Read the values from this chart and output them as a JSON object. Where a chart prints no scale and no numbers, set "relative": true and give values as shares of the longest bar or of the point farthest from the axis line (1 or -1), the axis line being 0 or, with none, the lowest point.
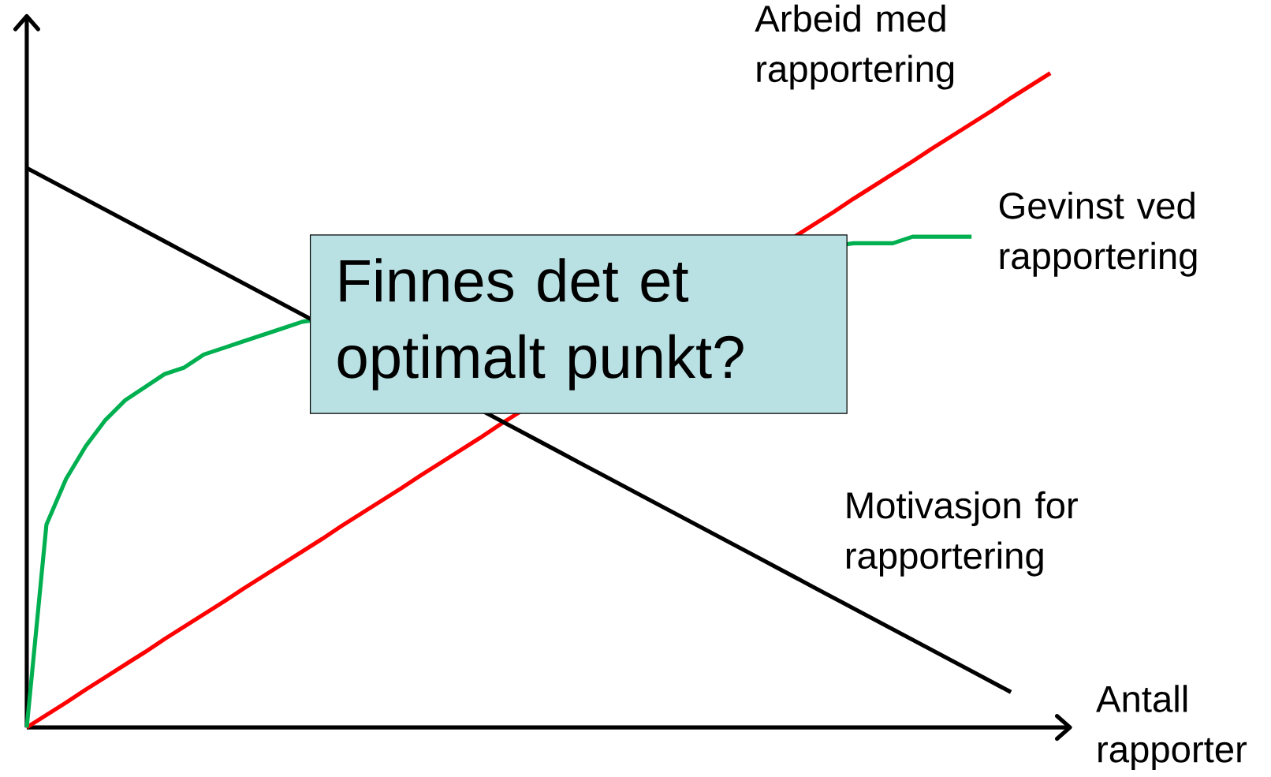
{
  "chart_data": {
    "type": "line",
    "relative": true,
    "xlabel": "Antall rapporter",
    "legend": false,
    "marker": "none",
    "line_style": "solid",
    "categories": [
      null,
      null,
      null,
      null,
      null,
      null,
      null,
      null,
      null,
      null,
      null,
      null,
      null,
      null,
      null,
      null,
      null,
      null,
      null,
      null,
      null,
      null,
      null,
      null,
      null,
      null,
      null,
      null,
      null,
      null,
      null,
      null,
      null,
      null,
      null,
      null,
      null,
      null,
      null,
      null,
      null,
      null,
      null,
      null,
      null,
      null,
      null,
      null,
      null,
      null,
      null,
      null,
      null
    ],
    "series": [
      {
        "name": "Arbeid med rapportering",
        "color": "#ff0000",
        "values": [
          0,
          0.019,
          0.038,
          0.058,
          0.077,
          0.096,
          0.115,
          0.135,
          0.154,
          0.173,
          0.192,
          0.212,
          0.231,
          0.25,
          0.269,
          0.288,
          0.308,
          0.327,
          0.346,
          0.365,
          0.385,
          0.404,
          0.423,
          0.442,
          0.462,
          null,
          null,
          null,
          null,
          null,
          null,
          null,
          null,
          null,
          null,
          null,
          null,
          null,
          null,
          null,
          0.769,
          0.788,
          0.808,
          0.827,
          0.846,
          0.865,
          0.885,
          0.904,
          0.923,
          0.942,
          0.962,
          0.981,
          1
        ]
      },
      {
        "name": "Gevinst ved rapportering",
        "color": "#00b050",
        "values": [
          0,
          0.31,
          0.38,
          0.43,
          0.47,
          0.5,
          0.52,
          0.54,
          0.55,
          0.57,
          0.58,
          0.59,
          0.6,
          0.61,
          0.62,
          null,
          null,
          null,
          null,
          null,
          null,
          null,
          null,
          null,
          null,
          null,
          null,
          null,
          null,
          null,
          null,
          null,
          null,
          null,
          null,
          null,
          null,
          null,
          null,
          null,
          null,
          null,
          0.74,
          0.74,
          0.74,
          0.75,
          0.75,
          0.75,
          0.75,
          null,
          null,
          null,
          null
        ]
      },
      {
        "name": "Motivasjon for rapportering",
        "color": "#000000",
        "values": [
          0.855,
          0.839,
          0.823,
          0.807,
          0.791,
          0.775,
          0.759,
          0.743,
          0.727,
          0.711,
          0.695,
          0.679,
          0.663,
          0.647,
          0.631,
          null,
          null,
          null,
          null,
          null,
          null,
          null,
          null,
          null,
          0.47,
          0.454,
          0.438,
          0.422,
          0.406,
          0.39,
          0.374,
          0.358,
          0.342,
          0.326,
          0.31,
          0.294,
          0.278,
          0.262,
          0.246,
          0.23,
          0.214,
          0.198,
          0.182,
          0.166,
          0.15,
          0.134,
          0.118,
          0.102,
          0.086,
          0.07,
          0.054,
          null,
          null
        ]
      }
    ],
    "annotations": [
      "Finnes det et optimalt punkt?"
    ]
  }
}
